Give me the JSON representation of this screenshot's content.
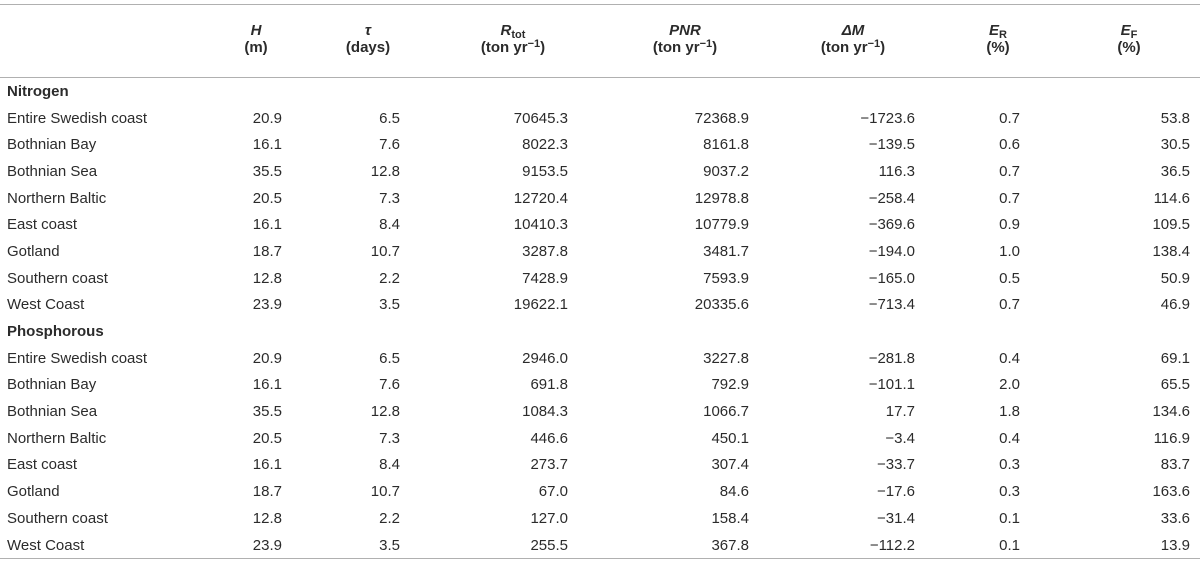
{
  "headers": [
    {
      "sym": "",
      "sub": "",
      "unit": "",
      "unit_sup": ""
    },
    {
      "sym": "H",
      "sub": "",
      "unit": "(m)",
      "unit_sup": ""
    },
    {
      "sym": "τ",
      "sub": "",
      "unit": "(days)",
      "unit_sup": ""
    },
    {
      "sym": "R",
      "sub": "tot",
      "unit": "(ton yr",
      "unit_sup": "−1",
      "unit_end": ")"
    },
    {
      "sym": "PNR",
      "sub": "",
      "unit": "(ton yr",
      "unit_sup": "−1",
      "unit_end": ")"
    },
    {
      "sym": "ΔM",
      "sub": "",
      "unit": "(ton yr",
      "unit_sup": "−1",
      "unit_end": ")"
    },
    {
      "sym": "E",
      "sub": "R",
      "unit": "(%)",
      "unit_sup": ""
    },
    {
      "sym": "E",
      "sub": "F",
      "unit": "(%)",
      "unit_sup": ""
    }
  ],
  "sections": [
    {
      "title": "Nitrogen",
      "rows": [
        [
          "Entire Swedish coast",
          "20.9",
          "6.5",
          "70645.3",
          "72368.9",
          "−1723.6",
          "0.7",
          "53.8"
        ],
        [
          "Bothnian Bay",
          "16.1",
          "7.6",
          "8022.3",
          "8161.8",
          "−139.5",
          "0.6",
          "30.5"
        ],
        [
          "Bothnian Sea",
          "35.5",
          "12.8",
          "9153.5",
          "9037.2",
          "116.3",
          "0.7",
          "36.5"
        ],
        [
          "Northern Baltic",
          "20.5",
          "7.3",
          "12720.4",
          "12978.8",
          "−258.4",
          "0.7",
          "114.6"
        ],
        [
          "East coast",
          "16.1",
          "8.4",
          "10410.3",
          "10779.9",
          "−369.6",
          "0.9",
          "109.5"
        ],
        [
          "Gotland",
          "18.7",
          "10.7",
          "3287.8",
          "3481.7",
          "−194.0",
          "1.0",
          "138.4"
        ],
        [
          "Southern coast",
          "12.8",
          "2.2",
          "7428.9",
          "7593.9",
          "−165.0",
          "0.5",
          "50.9"
        ],
        [
          "West Coast",
          "23.9",
          "3.5",
          "19622.1",
          "20335.6",
          "−713.4",
          "0.7",
          "46.9"
        ]
      ]
    },
    {
      "title": "Phosphorous",
      "rows": [
        [
          "Entire Swedish coast",
          "20.9",
          "6.5",
          "2946.0",
          "3227.8",
          "−281.8",
          "0.4",
          "69.1"
        ],
        [
          "Bothnian Bay",
          "16.1",
          "7.6",
          "691.8",
          "792.9",
          "−101.1",
          "2.0",
          "65.5"
        ],
        [
          "Bothnian Sea",
          "35.5",
          "12.8",
          "1084.3",
          "1066.7",
          "17.7",
          "1.8",
          "134.6"
        ],
        [
          "Northern Baltic",
          "20.5",
          "7.3",
          "446.6",
          "450.1",
          "−3.4",
          "0.4",
          "116.9"
        ],
        [
          "East coast",
          "16.1",
          "8.4",
          "273.7",
          "307.4",
          "−33.7",
          "0.3",
          "83.7"
        ],
        [
          "Gotland",
          "18.7",
          "10.7",
          "67.0",
          "84.6",
          "−17.6",
          "0.3",
          "163.6"
        ],
        [
          "Southern coast",
          "12.8",
          "2.2",
          "127.0",
          "158.4",
          "−31.4",
          "0.1",
          "33.6"
        ],
        [
          "West Coast",
          "23.9",
          "3.5",
          "255.5",
          "367.8",
          "−112.2",
          "0.1",
          "13.9"
        ]
      ]
    }
  ]
}
